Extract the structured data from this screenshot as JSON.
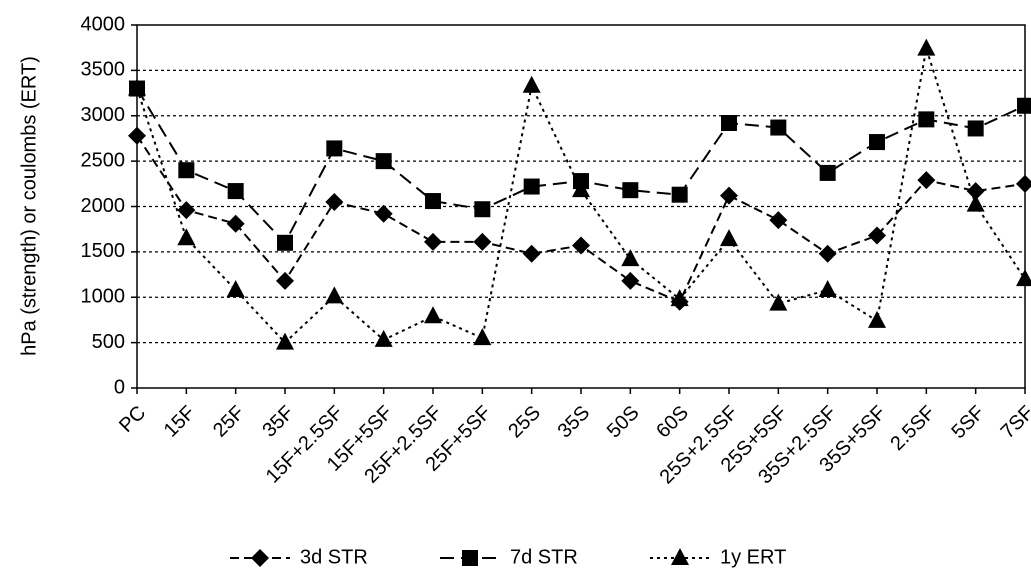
{
  "chart_data": {
    "type": "line",
    "y_label": "hPa (strength) or coulombs (ERT)",
    "categories": [
      "PC",
      "15F",
      "25F",
      "35F",
      "15F+2.5SF",
      "15F+5SF",
      "25F+2.5SF",
      "25F+5SF",
      "25S",
      "35S",
      "50S",
      "60S",
      "25S+2.5SF",
      "25S+5SF",
      "35S+2.5SF",
      "35S+5SF",
      "2.5SF",
      "5SF",
      "7SF"
    ],
    "series": [
      {
        "name": "3d STR",
        "color": "#000000",
        "marker": "diamond",
        "dash": "dashed",
        "values": [
          2780,
          1960,
          1810,
          1180,
          2050,
          1920,
          1610,
          1610,
          1480,
          1570,
          1180,
          950,
          2120,
          1850,
          1480,
          1680,
          2290,
          2170,
          2250
        ]
      },
      {
        "name": "7d STR",
        "color": "#000000",
        "marker": "square",
        "dash": "long-dashed",
        "values": [
          3300,
          2400,
          2170,
          1600,
          2640,
          2500,
          2060,
          1970,
          2220,
          2280,
          2180,
          2130,
          2920,
          2870,
          2370,
          2710,
          2960,
          2860,
          3110
        ]
      },
      {
        "name": "1y ERT",
        "color": "#000000",
        "marker": "triangle",
        "dash": "dotted",
        "values": [
          3300,
          1650,
          1080,
          500,
          1010,
          530,
          790,
          550,
          3330,
          2180,
          1420,
          980,
          1640,
          930,
          1080,
          740,
          3740,
          2020,
          1200
        ]
      }
    ],
    "ylim": [
      0,
      4000
    ],
    "yticks": [
      0,
      500,
      1000,
      1500,
      2000,
      2500,
      3000,
      3500,
      4000
    ],
    "grid": true,
    "legend": "bottom"
  }
}
